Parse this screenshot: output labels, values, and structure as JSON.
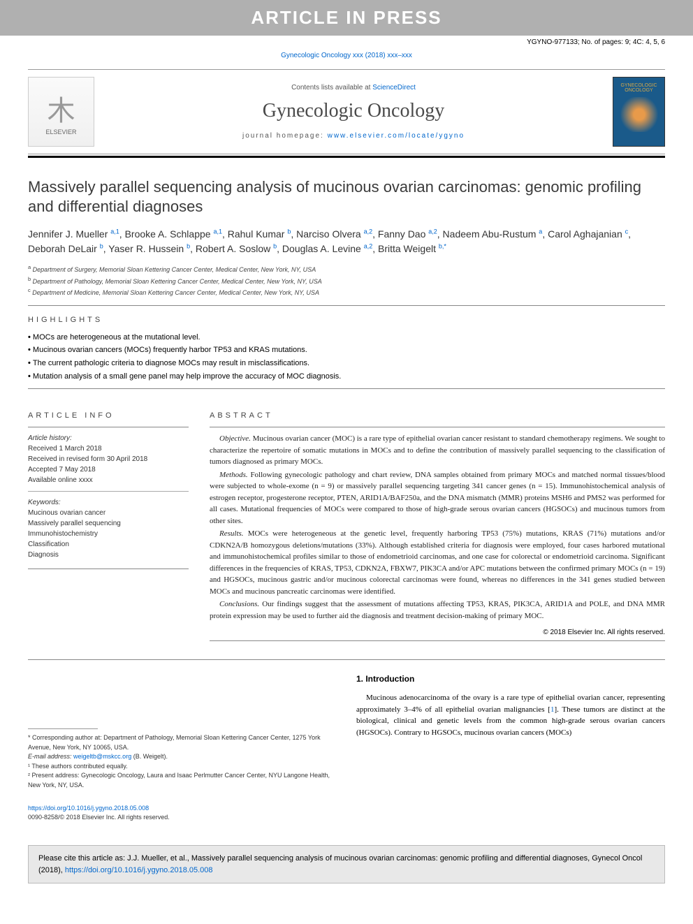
{
  "banner": "ARTICLE IN PRESS",
  "doc_id": "YGYNO-977133; No. of pages: 9; 4C: 4, 5, 6",
  "citation": "Gynecologic Oncology xxx (2018) xxx–xxx",
  "header": {
    "contents_prefix": "Contents lists available at ",
    "contents_link": "ScienceDirect",
    "journal": "Gynecologic Oncology",
    "homepage_prefix": "journal homepage: ",
    "homepage_url": "www.elsevier.com/locate/ygyno",
    "publisher": "ELSEVIER",
    "cover_text": "GYNECOLOGIC ONCOLOGY"
  },
  "title": "Massively parallel sequencing analysis of mucinous ovarian carcinomas: genomic profiling and differential diagnoses",
  "authors_html": "Jennifer J. Mueller <sup>a,1</sup>, Brooke A. Schlappe <sup>a,1</sup>, Rahul Kumar <sup>b</sup>, Narciso Olvera <sup>a,2</sup>, Fanny Dao <sup>a,2</sup>, Nadeem Abu-Rustum <sup>a</sup>, Carol Aghajanian <sup>c</sup>, Deborah DeLair <sup>b</sup>, Yaser R. Hussein <sup>b</sup>, Robert A. Soslow <sup>b</sup>, Douglas A. Levine <sup>a,2</sup>, Britta Weigelt <sup>b,*</sup>",
  "affiliations": [
    {
      "sup": "a",
      "text": "Department of Surgery, Memorial Sloan Kettering Cancer Center, Medical Center, New York, NY, USA"
    },
    {
      "sup": "b",
      "text": "Department of Pathology, Memorial Sloan Kettering Cancer Center, Medical Center, New York, NY, USA"
    },
    {
      "sup": "c",
      "text": "Department of Medicine, Memorial Sloan Kettering Cancer Center, Medical Center, New York, NY, USA"
    }
  ],
  "highlights_label": "HIGHLIGHTS",
  "highlights": [
    "MOCs are heterogeneous at the mutational level.",
    "Mucinous ovarian cancers (MOCs) frequently harbor TP53 and KRAS mutations.",
    "The current pathologic criteria to diagnose MOCs may result in misclassifications.",
    "Mutation analysis of a small gene panel may help improve the accuracy of MOC diagnosis."
  ],
  "article_info_label": "ARTICLE INFO",
  "abstract_label": "ABSTRACT",
  "article_info": {
    "history_label": "Article history:",
    "history": [
      "Received 1 March 2018",
      "Received in revised form 30 April 2018",
      "Accepted 7 May 2018",
      "Available online xxxx"
    ],
    "keywords_label": "Keywords:",
    "keywords": [
      "Mucinous ovarian cancer",
      "Massively parallel sequencing",
      "Immunohistochemistry",
      "Classification",
      "Diagnosis"
    ]
  },
  "abstract": {
    "objective": "Mucinous ovarian cancer (MOC) is a rare type of epithelial ovarian cancer resistant to standard chemotherapy regimens. We sought to characterize the repertoire of somatic mutations in MOCs and to define the contribution of massively parallel sequencing to the classification of tumors diagnosed as primary MOCs.",
    "methods": "Following gynecologic pathology and chart review, DNA samples obtained from primary MOCs and matched normal tissues/blood were subjected to whole-exome (n = 9) or massively parallel sequencing targeting 341 cancer genes (n = 15). Immunohistochemical analysis of estrogen receptor, progesterone receptor, PTEN, ARID1A/BAF250a, and the DNA mismatch (MMR) proteins MSH6 and PMS2 was performed for all cases. Mutational frequencies of MOCs were compared to those of high-grade serous ovarian cancers (HGSOCs) and mucinous tumors from other sites.",
    "results": "MOCs were heterogeneous at the genetic level, frequently harboring TP53 (75%) mutations, KRAS (71%) mutations and/or CDKN2A/B homozygous deletions/mutations (33%). Although established criteria for diagnosis were employed, four cases harbored mutational and immunohistochemical profiles similar to those of endometrioid carcinomas, and one case for colorectal or endometrioid carcinoma. Significant differences in the frequencies of KRAS, TP53, CDKN2A, FBXW7, PIK3CA and/or APC mutations between the confirmed primary MOCs (n = 19) and HGSOCs, mucinous gastric and/or mucinous colorectal carcinomas were found, whereas no differences in the 341 genes studied between MOCs and mucinous pancreatic carcinomas were identified.",
    "conclusions": "Our findings suggest that the assessment of mutations affecting TP53, KRAS, PIK3CA, ARID1A and POLE, and DNA MMR protein expression may be used to further aid the diagnosis and treatment decision-making of primary MOC."
  },
  "copyright": "© 2018 Elsevier Inc. All rights reserved.",
  "footnotes": {
    "corr": "* Corresponding author at: Department of Pathology, Memorial Sloan Kettering Cancer Center, 1275 York Avenue, New York, NY 10065, USA.",
    "email_label": "E-mail address: ",
    "email": "weigeltb@mskcc.org",
    "email_name": " (B. Weigelt).",
    "note1": "¹ These authors contributed equally.",
    "note2": "² Present address: Gynecologic Oncology, Laura and Isaac Perlmutter Cancer Center, NYU Langone Health, New York, NY, USA."
  },
  "intro": {
    "heading": "1. Introduction",
    "text": "Mucinous adenocarcinoma of the ovary is a rare type of epithelial ovarian cancer, representing approximately 3–4% of all epithelial ovarian malignancies [1]. These tumors are distinct at the biological, clinical and genetic levels from the common high-grade serous ovarian cancers (HGSOCs). Contrary to HGSOCs, mucinous ovarian cancers (MOCs)",
    "ref_link": "1"
  },
  "doi": {
    "url": "https://doi.org/10.1016/j.ygyno.2018.05.008",
    "issn_line": "0090-8258/© 2018 Elsevier Inc. All rights reserved."
  },
  "cite_box": {
    "prefix": "Please cite this article as: J.J. Mueller, et al., Massively parallel sequencing analysis of mucinous ovarian carcinomas: genomic profiling and differential diagnoses, Gynecol Oncol (2018), ",
    "link": "https://doi.org/10.1016/j.ygyno.2018.05.008"
  }
}
